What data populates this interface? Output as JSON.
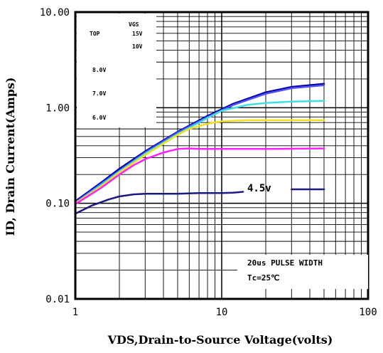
{
  "chart_data": {
    "type": "line",
    "xscale": "log",
    "yscale": "log",
    "xlim": [
      1,
      100
    ],
    "ylim": [
      0.01,
      10
    ],
    "grid": true,
    "xlabel": "VDS,Drain-to-Source Voltage(volts)",
    "ylabel": "ID, Drain Current(Amps)",
    "x_ticks": [
      1,
      10,
      100
    ],
    "x_tick_labels": [
      "1",
      "10",
      "100"
    ],
    "y_ticks": [
      0.01,
      0.1,
      1,
      10
    ],
    "y_tick_labels": [
      "0.01",
      "0.10",
      "1.00",
      "10.00"
    ],
    "legend": {
      "placement": "top-left",
      "header": "VGS",
      "top_label": "TOP",
      "entries": [
        "15V",
        "10V",
        "8.0V",
        "7.0V",
        "6.0V"
      ]
    },
    "series": [
      {
        "color": "#0000a0",
        "x": [
          1,
          1.5,
          2,
          3,
          5,
          8,
          12,
          20,
          30,
          50
        ],
        "y": [
          0.105,
          0.165,
          0.23,
          0.35,
          0.56,
          0.82,
          1.1,
          1.45,
          1.65,
          1.78
        ]
      },
      {
        "color": "#5050ff",
        "x": [
          1,
          1.5,
          2,
          3,
          5,
          8,
          12,
          20,
          30,
          50
        ],
        "y": [
          0.102,
          0.16,
          0.22,
          0.34,
          0.55,
          0.8,
          1.07,
          1.4,
          1.6,
          1.72
        ]
      },
      {
        "color": "#40e0e0",
        "x": [
          1,
          1.5,
          2,
          3,
          5,
          8,
          10,
          15,
          20,
          30,
          50
        ],
        "y": [
          0.1,
          0.155,
          0.215,
          0.33,
          0.53,
          0.78,
          0.93,
          1.07,
          1.12,
          1.16,
          1.18
        ]
      },
      {
        "color": "#f0e020",
        "x": [
          1,
          1.5,
          2,
          3,
          4,
          5,
          6,
          8,
          10,
          15,
          20,
          50
        ],
        "y": [
          0.1,
          0.15,
          0.21,
          0.32,
          0.42,
          0.52,
          0.6,
          0.68,
          0.72,
          0.74,
          0.74,
          0.74
        ]
      },
      {
        "color": "#ff20ff",
        "x": [
          1,
          1.5,
          2,
          2.5,
          3,
          4,
          5,
          6,
          7,
          10,
          20,
          50
        ],
        "y": [
          0.098,
          0.145,
          0.2,
          0.25,
          0.29,
          0.34,
          0.37,
          0.375,
          0.37,
          0.37,
          0.37,
          0.375
        ]
      },
      {
        "color": "#1a1a80",
        "x": [
          1,
          1.3,
          1.7,
          2,
          2.5,
          3,
          5,
          7,
          10,
          12,
          14
        ],
        "y": [
          0.078,
          0.095,
          0.11,
          0.118,
          0.124,
          0.126,
          0.126,
          0.128,
          0.128,
          0.129,
          0.132
        ]
      },
      {
        "color": "#1a1a80",
        "x": [
          30,
          50
        ],
        "y": [
          0.14,
          0.14
        ]
      }
    ],
    "annotations": [
      "4.5v",
      "20us PULSE WIDTH",
      "Tc=25℃"
    ]
  }
}
